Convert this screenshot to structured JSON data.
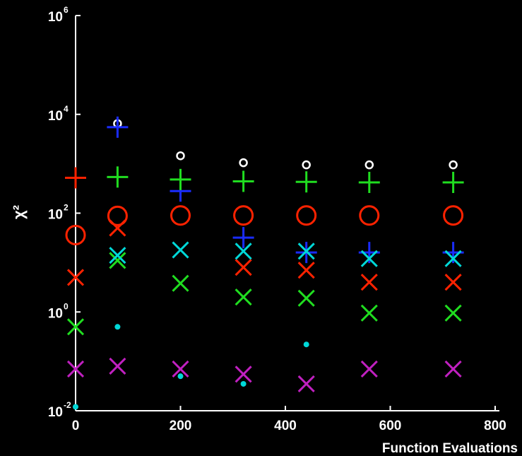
{
  "chart_data": {
    "type": "scatter",
    "xlabel": "Function Evaluations",
    "ylabel": "χ²",
    "xlim": [
      0,
      800
    ],
    "ylim": [
      0.01,
      1000000
    ],
    "yscale": "log",
    "grid": false,
    "x_ticks": [
      {
        "value": 0,
        "label": "0"
      },
      {
        "value": 200,
        "label": "200"
      },
      {
        "value": 400,
        "label": "400"
      },
      {
        "value": 600,
        "label": "600"
      },
      {
        "value": 800,
        "label": "800"
      }
    ],
    "y_ticks": [
      {
        "value": 0.01,
        "base": "10",
        "exp": "-2"
      },
      {
        "value": 1,
        "base": "10",
        "exp": "0"
      },
      {
        "value": 100,
        "base": "10",
        "exp": "2"
      },
      {
        "value": 10000,
        "base": "10",
        "exp": "4"
      },
      {
        "value": 1000000,
        "base": "10",
        "exp": "6"
      }
    ],
    "series": [
      {
        "marker": "small-circle",
        "color": "#ffffff",
        "points": [
          [
            80,
            6500
          ],
          [
            200,
            1450
          ],
          [
            320,
            1050
          ],
          [
            440,
            950
          ],
          [
            560,
            950
          ],
          [
            720,
            950
          ]
        ]
      },
      {
        "marker": "plus",
        "color": "#1a2cff",
        "points": [
          [
            80,
            5500
          ],
          [
            200,
            280
          ],
          [
            320,
            32
          ],
          [
            440,
            16
          ],
          [
            560,
            16
          ],
          [
            720,
            16
          ]
        ]
      },
      {
        "marker": "plus",
        "color": "#ff2200",
        "points": [
          [
            0,
            520
          ]
        ]
      },
      {
        "marker": "plus",
        "color": "#20dd20",
        "points": [
          [
            80,
            540
          ],
          [
            200,
            480
          ],
          [
            320,
            440
          ],
          [
            440,
            430
          ],
          [
            560,
            420
          ],
          [
            720,
            420
          ]
        ]
      },
      {
        "marker": "circle",
        "color": "#ff2200",
        "points": [
          [
            0,
            36
          ],
          [
            80,
            88
          ],
          [
            200,
            90
          ],
          [
            320,
            90
          ],
          [
            440,
            90
          ],
          [
            560,
            90
          ],
          [
            720,
            90
          ]
        ]
      },
      {
        "marker": "x",
        "color": "#ff2200",
        "points": [
          [
            0,
            5
          ],
          [
            80,
            50
          ],
          [
            320,
            8
          ],
          [
            440,
            7
          ],
          [
            560,
            4
          ],
          [
            720,
            4
          ]
        ]
      },
      {
        "marker": "x",
        "color": "#20dd20",
        "points": [
          [
            0,
            0.5
          ],
          [
            80,
            11
          ],
          [
            200,
            3.8
          ],
          [
            320,
            2
          ],
          [
            440,
            1.9
          ],
          [
            560,
            0.95
          ],
          [
            720,
            0.95
          ]
        ]
      },
      {
        "marker": "x",
        "color": "#00d8d8",
        "points": [
          [
            80,
            14
          ],
          [
            200,
            18
          ],
          [
            320,
            17
          ],
          [
            440,
            17
          ],
          [
            560,
            12
          ],
          [
            720,
            12
          ]
        ]
      },
      {
        "marker": "x",
        "color": "#c020c0",
        "points": [
          [
            0,
            0.07
          ],
          [
            80,
            0.08
          ],
          [
            200,
            0.07
          ],
          [
            320,
            0.055
          ],
          [
            440,
            0.035
          ],
          [
            560,
            0.07
          ],
          [
            720,
            0.07
          ]
        ]
      },
      {
        "marker": "dot",
        "color": "#00d8d8",
        "points": [
          [
            0,
            0.012
          ],
          [
            80,
            0.5
          ],
          [
            200,
            0.05
          ],
          [
            320,
            0.035
          ],
          [
            440,
            0.22
          ]
        ]
      }
    ]
  }
}
